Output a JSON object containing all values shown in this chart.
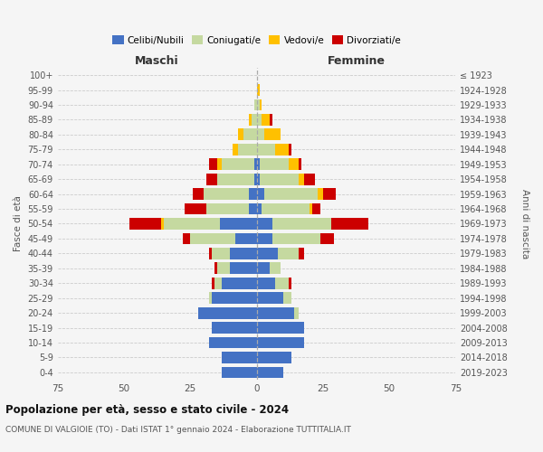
{
  "age_groups": [
    "0-4",
    "5-9",
    "10-14",
    "15-19",
    "20-24",
    "25-29",
    "30-34",
    "35-39",
    "40-44",
    "45-49",
    "50-54",
    "55-59",
    "60-64",
    "65-69",
    "70-74",
    "75-79",
    "80-84",
    "85-89",
    "90-94",
    "95-99",
    "100+"
  ],
  "birth_years": [
    "2019-2023",
    "2014-2018",
    "2009-2013",
    "2004-2008",
    "1999-2003",
    "1994-1998",
    "1989-1993",
    "1984-1988",
    "1979-1983",
    "1974-1978",
    "1969-1973",
    "1964-1968",
    "1959-1963",
    "1954-1958",
    "1949-1953",
    "1944-1948",
    "1939-1943",
    "1934-1938",
    "1929-1933",
    "1924-1928",
    "≤ 1923"
  ],
  "male": {
    "celibi": [
      13,
      13,
      18,
      17,
      22,
      17,
      13,
      10,
      10,
      8,
      14,
      3,
      3,
      1,
      1,
      0,
      0,
      0,
      0,
      0,
      0
    ],
    "coniugati": [
      0,
      0,
      0,
      0,
      0,
      1,
      3,
      5,
      7,
      17,
      21,
      16,
      17,
      14,
      12,
      7,
      5,
      2,
      1,
      0,
      0
    ],
    "vedovi": [
      0,
      0,
      0,
      0,
      0,
      0,
      0,
      0,
      0,
      0,
      1,
      0,
      0,
      0,
      2,
      2,
      2,
      1,
      0,
      0,
      0
    ],
    "divorziati": [
      0,
      0,
      0,
      0,
      0,
      0,
      1,
      1,
      1,
      3,
      12,
      8,
      4,
      4,
      3,
      0,
      0,
      0,
      0,
      0,
      0
    ]
  },
  "female": {
    "nubili": [
      10,
      13,
      18,
      18,
      14,
      10,
      7,
      5,
      8,
      6,
      6,
      2,
      3,
      1,
      1,
      0,
      0,
      0,
      0,
      0,
      0
    ],
    "coniugate": [
      0,
      0,
      0,
      0,
      2,
      3,
      5,
      4,
      8,
      18,
      22,
      18,
      20,
      15,
      11,
      7,
      3,
      2,
      1,
      0,
      0
    ],
    "vedove": [
      0,
      0,
      0,
      0,
      0,
      0,
      0,
      0,
      0,
      0,
      0,
      1,
      2,
      2,
      4,
      5,
      6,
      3,
      1,
      1,
      0
    ],
    "divorziate": [
      0,
      0,
      0,
      0,
      0,
      0,
      1,
      0,
      2,
      5,
      14,
      3,
      5,
      4,
      1,
      1,
      0,
      1,
      0,
      0,
      0
    ]
  },
  "colors": {
    "celibi": "#4472c4",
    "coniugati": "#c5d9a0",
    "vedovi": "#ffc000",
    "divorziati": "#cc0000"
  },
  "xlim": 75,
  "title": "Popolazione per età, sesso e stato civile - 2024",
  "subtitle": "COMUNE DI VALGIOIE (TO) - Dati ISTAT 1° gennaio 2024 - Elaborazione TUTTITALIA.IT",
  "ylabel_left": "Fasce di età",
  "ylabel_right": "Anni di nascita",
  "xlabel_left": "Maschi",
  "xlabel_right": "Femmine",
  "legend_labels": [
    "Celibi/Nubili",
    "Coniugati/e",
    "Vedovi/e",
    "Divorziati/e"
  ],
  "bg_color": "#f5f5f5",
  "grid_color": "#cccccc"
}
